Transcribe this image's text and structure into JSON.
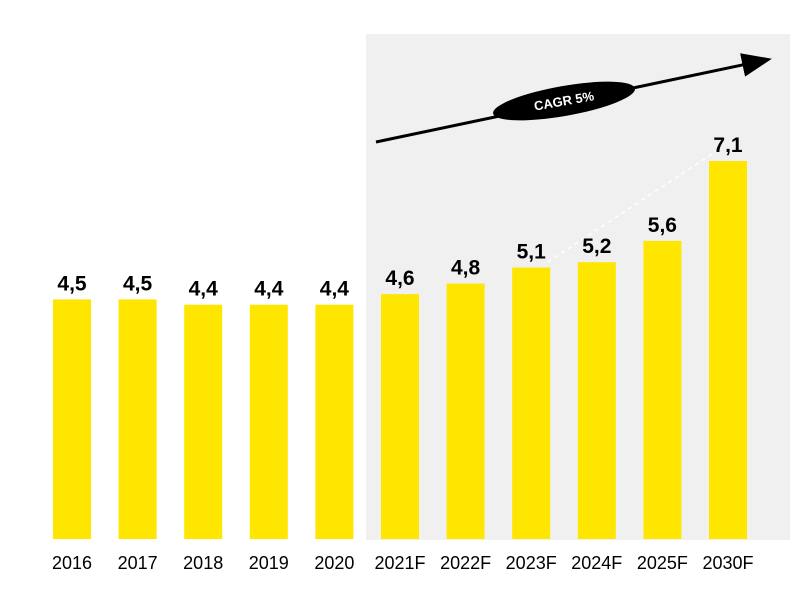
{
  "colors": {
    "bar": "#FFE600",
    "forecast_panel": "#F0F0F0",
    "text": "#000000",
    "cagr_badge": "#000000",
    "cagr_text": "#FFFFFF"
  },
  "annotation": {
    "cagr_label": "CAGR 5%"
  },
  "chart_data": {
    "type": "bar",
    "categories": [
      "2016",
      "2017",
      "2018",
      "2019",
      "2020",
      "2021F",
      "2022F",
      "2023F",
      "2024F",
      "2025F",
      "2030F"
    ],
    "values": [
      4.5,
      4.5,
      4.4,
      4.4,
      4.4,
      4.6,
      4.8,
      5.1,
      5.2,
      5.6,
      7.1
    ],
    "value_labels": [
      "4,5",
      "4,5",
      "4,4",
      "4,4",
      "4,4",
      "4,6",
      "4,8",
      "5,1",
      "5,2",
      "5,6",
      "7,1"
    ],
    "forecast_categories": [
      "2021F",
      "2022F",
      "2023F",
      "2024F",
      "2025F",
      "2030F"
    ],
    "ylim": [
      0,
      7.1
    ],
    "grid": false,
    "legend": "none"
  }
}
